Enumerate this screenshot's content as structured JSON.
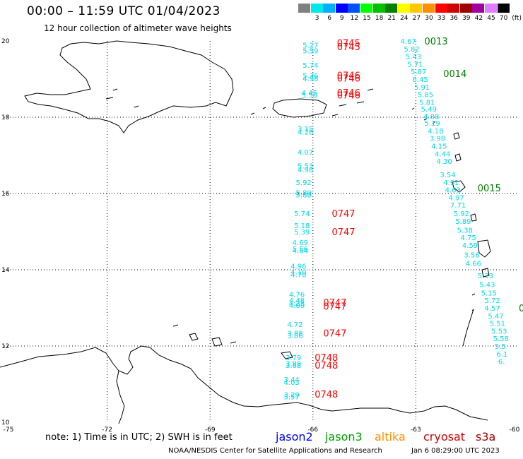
{
  "header": {
    "title": "00:00 – 11:59 UTC 01/04/2023",
    "subtitle": "12 hour collection of altimeter wave heights"
  },
  "legend": {
    "unit": "(ft)",
    "bins": [
      {
        "label": "",
        "color": "#808080"
      },
      {
        "label": "3",
        "color": "#00e8e8"
      },
      {
        "label": "6",
        "color": "#00b0ff"
      },
      {
        "label": "9",
        "color": "#0000ff"
      },
      {
        "label": "12",
        "color": "#0050ff"
      },
      {
        "label": "15",
        "color": "#00ff00"
      },
      {
        "label": "18",
        "color": "#00c000"
      },
      {
        "label": "21",
        "color": "#008000"
      },
      {
        "label": "24",
        "color": "#ffff00"
      },
      {
        "label": "27",
        "color": "#ffc800"
      },
      {
        "label": "30",
        "color": "#ff9000"
      },
      {
        "label": "33",
        "color": "#ff0000"
      },
      {
        "label": "36",
        "color": "#d00000"
      },
      {
        "label": "39",
        "color": "#a00000"
      },
      {
        "label": "42",
        "color": "#a000a0"
      },
      {
        "label": "45",
        "color": "#e080ff"
      },
      {
        "label": "70",
        "color": "#000000"
      }
    ]
  },
  "axes": {
    "lon_labels": [
      "-75",
      "-72",
      "-69",
      "-66",
      "-63",
      "-60"
    ],
    "lat_labels": [
      "10",
      "12",
      "14",
      "16",
      "18",
      "20"
    ],
    "lon_range": [
      -75,
      -60
    ],
    "lat_range": [
      10,
      20
    ]
  },
  "tracks": {
    "west": {
      "color": "#00d8e8",
      "points": [
        {
          "lat": 19.9,
          "lon": -66.3,
          "v": "5.27"
        },
        {
          "lat": 19.75,
          "lon": -66.3,
          "v": "5.59"
        },
        {
          "lat": 19.37,
          "lon": -66.3,
          "v": "5.74"
        },
        {
          "lat": 19.1,
          "lon": -66.3,
          "v": "5.36"
        },
        {
          "lat": 19.02,
          "lon": -66.3,
          "v": "4.98"
        },
        {
          "lat": 18.65,
          "lon": -66.33,
          "v": "4.45"
        },
        {
          "lat": 18.58,
          "lon": -66.33,
          "v": "5.56"
        },
        {
          "lat": 17.7,
          "lon": -66.45,
          "v": "3.15"
        },
        {
          "lat": 17.62,
          "lon": -66.45,
          "v": "4.28"
        },
        {
          "lat": 17.09,
          "lon": -66.45,
          "v": "4.07"
        },
        {
          "lat": 16.73,
          "lon": -66.45,
          "v": "5.53"
        },
        {
          "lat": 16.63,
          "lon": -66.45,
          "v": "4.98"
        },
        {
          "lat": 16.3,
          "lon": -66.5,
          "v": "5.92"
        },
        {
          "lat": 16.03,
          "lon": -66.5,
          "v": "5.89"
        },
        {
          "lat": 15.97,
          "lon": -66.5,
          "v": "5.80"
        },
        {
          "lat": 15.48,
          "lon": -66.55,
          "v": "5.74"
        },
        {
          "lat": 15.17,
          "lon": -66.55,
          "v": "5.18"
        },
        {
          "lat": 15.0,
          "lon": -66.55,
          "v": "5.39"
        },
        {
          "lat": 14.72,
          "lon": -66.6,
          "v": "4.69"
        },
        {
          "lat": 14.56,
          "lon": -66.6,
          "v": "5.56"
        },
        {
          "lat": 14.51,
          "lon": -66.6,
          "v": "4.64"
        },
        {
          "lat": 14.1,
          "lon": -66.65,
          "v": "4.96"
        },
        {
          "lat": 13.95,
          "lon": -66.65,
          "v": "4.10"
        },
        {
          "lat": 13.88,
          "lon": -66.65,
          "v": "4.70"
        },
        {
          "lat": 13.36,
          "lon": -66.7,
          "v": "4.76"
        },
        {
          "lat": 13.2,
          "lon": -66.7,
          "v": "4.48"
        },
        {
          "lat": 13.13,
          "lon": -66.7,
          "v": "4.28"
        },
        {
          "lat": 13.07,
          "lon": -66.7,
          "v": "4.00"
        },
        {
          "lat": 12.57,
          "lon": -66.75,
          "v": "4.72"
        },
        {
          "lat": 12.34,
          "lon": -66.75,
          "v": "3.88"
        },
        {
          "lat": 12.28,
          "lon": -66.75,
          "v": "3.86"
        },
        {
          "lat": 11.7,
          "lon": -66.8,
          "v": "3.79"
        },
        {
          "lat": 11.55,
          "lon": -66.8,
          "v": "3.89"
        },
        {
          "lat": 11.5,
          "lon": -66.8,
          "v": "3.68"
        },
        {
          "lat": 11.13,
          "lon": -66.85,
          "v": "3.44"
        },
        {
          "lat": 11.06,
          "lon": -66.85,
          "v": "4.03"
        },
        {
          "lat": 10.73,
          "lon": -66.85,
          "v": "3.29"
        },
        {
          "lat": 10.68,
          "lon": -66.85,
          "v": "3.57"
        }
      ]
    },
    "east": {
      "color": "#00d8e8",
      "points": [
        {
          "lat": 20.0,
          "lon": -63.45,
          "v": "4.67"
        },
        {
          "lat": 19.8,
          "lon": -63.35,
          "v": "5.82"
        },
        {
          "lat": 19.6,
          "lon": -63.3,
          "v": "5.43"
        },
        {
          "lat": 19.4,
          "lon": -63.25,
          "v": "5.71"
        },
        {
          "lat": 19.2,
          "lon": -63.15,
          "v": "5.87"
        },
        {
          "lat": 19.0,
          "lon": -63.1,
          "v": "6.45"
        },
        {
          "lat": 18.8,
          "lon": -63.05,
          "v": "5.91"
        },
        {
          "lat": 18.6,
          "lon": -62.95,
          "v": "5.85"
        },
        {
          "lat": 18.4,
          "lon": -62.9,
          "v": "5.81"
        },
        {
          "lat": 18.22,
          "lon": -62.85,
          "v": "5.49"
        },
        {
          "lat": 18.03,
          "lon": -62.78,
          "v": "4.88"
        },
        {
          "lat": 17.85,
          "lon": -62.75,
          "v": "5.19"
        },
        {
          "lat": 17.65,
          "lon": -62.65,
          "v": "4.18"
        },
        {
          "lat": 17.45,
          "lon": -62.6,
          "v": "3.98"
        },
        {
          "lat": 17.25,
          "lon": -62.55,
          "v": "4.15"
        },
        {
          "lat": 17.05,
          "lon": -62.45,
          "v": "4.44"
        },
        {
          "lat": 16.85,
          "lon": -62.4,
          "v": "4.30"
        },
        {
          "lat": 16.5,
          "lon": -62.3,
          "v": "3.54"
        },
        {
          "lat": 16.3,
          "lon": -62.2,
          "v": "4.91"
        },
        {
          "lat": 16.1,
          "lon": -62.15,
          "v": "4.63"
        },
        {
          "lat": 15.9,
          "lon": -62.05,
          "v": "4.97"
        },
        {
          "lat": 15.7,
          "lon": -62.0,
          "v": "7.71"
        },
        {
          "lat": 15.48,
          "lon": -61.9,
          "v": "5.92"
        },
        {
          "lat": 15.28,
          "lon": -61.85,
          "v": "5.89"
        },
        {
          "lat": 15.05,
          "lon": -61.8,
          "v": "5.38"
        },
        {
          "lat": 14.85,
          "lon": -61.7,
          "v": "4.75"
        },
        {
          "lat": 14.65,
          "lon": -61.65,
          "v": "4.59"
        },
        {
          "lat": 14.4,
          "lon": -61.6,
          "v": "3.56"
        },
        {
          "lat": 14.18,
          "lon": -61.55,
          "v": "4.66"
        },
        {
          "lat": 13.85,
          "lon": -61.2,
          "v": "5.33"
        },
        {
          "lat": 13.62,
          "lon": -61.15,
          "v": "5.43"
        },
        {
          "lat": 13.4,
          "lon": -61.1,
          "v": "5.15"
        },
        {
          "lat": 13.2,
          "lon": -61.0,
          "v": "5.72"
        },
        {
          "lat": 13.0,
          "lon": -61.0,
          "v": "4.57"
        },
        {
          "lat": 12.8,
          "lon": -60.9,
          "v": "5.47"
        },
        {
          "lat": 12.6,
          "lon": -60.85,
          "v": "5.51"
        },
        {
          "lat": 12.4,
          "lon": -60.8,
          "v": "5.53"
        },
        {
          "lat": 12.2,
          "lon": -60.75,
          "v": "5.58"
        },
        {
          "lat": 12.0,
          "lon": -60.7,
          "v": "5.5"
        },
        {
          "lat": 11.8,
          "lon": -60.65,
          "v": "6.1"
        },
        {
          "lat": 11.6,
          "lon": -60.6,
          "v": "6."
        }
      ]
    },
    "times": [
      {
        "lat": 19.95,
        "lon": -65.3,
        "t": "0745",
        "color": "#ff0000"
      },
      {
        "lat": 19.85,
        "lon": -65.3,
        "t": "0745",
        "color": "#ff0000"
      },
      {
        "lat": 19.1,
        "lon": -65.3,
        "t": "0746",
        "color": "#ff0000"
      },
      {
        "lat": 19.03,
        "lon": -65.3,
        "t": "0746",
        "color": "#ff0000"
      },
      {
        "lat": 18.65,
        "lon": -65.3,
        "t": "0746",
        "color": "#ff0000"
      },
      {
        "lat": 18.58,
        "lon": -65.3,
        "t": "0746",
        "color": "#ff0000"
      },
      {
        "lat": 15.48,
        "lon": -65.45,
        "t": "0747",
        "color": "#ff0000"
      },
      {
        "lat": 15.0,
        "lon": -65.45,
        "t": "0747",
        "color": "#ff0000"
      },
      {
        "lat": 13.15,
        "lon": -65.7,
        "t": "0747",
        "color": "#ff0000"
      },
      {
        "lat": 13.05,
        "lon": -65.7,
        "t": "0747",
        "color": "#ff0000"
      },
      {
        "lat": 12.34,
        "lon": -65.7,
        "t": "0747",
        "color": "#ff0000"
      },
      {
        "lat": 11.7,
        "lon": -65.95,
        "t": "0748",
        "color": "#ff0000"
      },
      {
        "lat": 11.5,
        "lon": -65.95,
        "t": "0748",
        "color": "#ff0000"
      },
      {
        "lat": 10.74,
        "lon": -65.95,
        "t": "0748",
        "color": "#ff0000"
      },
      {
        "lat": 20.0,
        "lon": -62.75,
        "t": "0013",
        "color": "#008000"
      },
      {
        "lat": 19.15,
        "lon": -62.2,
        "t": "0014",
        "color": "#008000"
      },
      {
        "lat": 16.15,
        "lon": -61.2,
        "t": "0015",
        "color": "#008000"
      },
      {
        "lat": 13.0,
        "lon": -60.0,
        "t": "0",
        "color": "#008000"
      }
    ]
  },
  "footer": {
    "note": "note: 1) Time is in UTC; 2) SWH is in feet",
    "missions": [
      {
        "name": "jason2",
        "color": "#0000ff"
      },
      {
        "name": "jason3",
        "color": "#00a000"
      },
      {
        "name": "altika",
        "color": "#ff9000"
      },
      {
        "name": "cryosat",
        "color": "#d00000"
      },
      {
        "name": "s3a",
        "color": "#a00000"
      }
    ],
    "credit": "NOAA/NESDIS Center for Satellite Applications and Research",
    "timestamp": "Jan  6 08:29:00 UTC 2023"
  }
}
